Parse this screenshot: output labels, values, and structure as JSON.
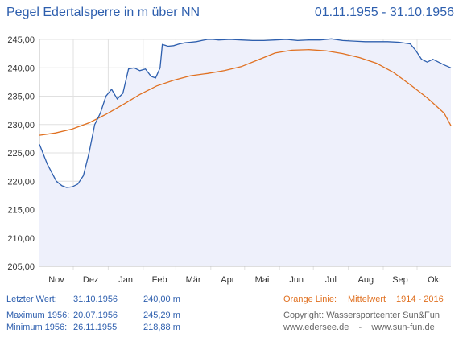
{
  "title": "Pegel Edertalsperre in m über NN",
  "date_range": "01.11.1955 - 31.10.1956",
  "info": {
    "last": {
      "label": "Letzter Wert:",
      "date": "31.10.1956",
      "value": "240,00 m"
    },
    "max": {
      "label": "Maximum 1956:",
      "date": "20.07.1956",
      "value": "245,29 m"
    },
    "min": {
      "label": "Minimum  1956:",
      "date": "26.11.1955",
      "value": "218,88 m"
    }
  },
  "legend": {
    "label": "Orange Linie:",
    "text": "Mittelwert",
    "years": "1914 - 2016"
  },
  "credits": {
    "copyright": "Copyright: Wassersportcenter Sun&Fun",
    "websites": "www.edersee.de    -    www.sun-fun.de"
  },
  "colors": {
    "level": "#2e5fae",
    "mean": "#e07020",
    "fill": "#eef0fb",
    "grid": "#e0e0e0",
    "accent": "#2e5fae"
  },
  "chart_data": {
    "type": "line",
    "ylim": [
      205,
      245
    ],
    "yticks": [
      "205,00",
      "210,00",
      "215,00",
      "220,00",
      "225,00",
      "230,00",
      "235,00",
      "240,00",
      "245,00"
    ],
    "months": [
      "Nov",
      "Dez",
      "Jan",
      "Feb",
      "Mär",
      "Apr",
      "Mai",
      "Jun",
      "Jul",
      "Aug",
      "Sep",
      "Okt"
    ],
    "grid": true,
    "series": [
      {
        "key": "level",
        "x": [
          1,
          8,
          16,
          21,
          25,
          30,
          35,
          40,
          45,
          50,
          55,
          60,
          65,
          70,
          75,
          80,
          85,
          90,
          95,
          100,
          104,
          108,
          110,
          112,
          115,
          120,
          125,
          130,
          135,
          140,
          145,
          150,
          155,
          160,
          170,
          180,
          190,
          200,
          210,
          220,
          230,
          240,
          250,
          260,
          270,
          280,
          290,
          300,
          310,
          320,
          330,
          335,
          340,
          345,
          350,
          355,
          360,
          366
        ],
        "values": [
          226.5,
          223,
          220,
          219.2,
          218.9,
          219,
          219.5,
          221,
          225,
          230,
          232,
          235,
          236.2,
          234.5,
          235.5,
          239.8,
          240,
          239.5,
          239.8,
          238.5,
          238.2,
          240,
          244.1,
          244,
          243.8,
          243.9,
          244.2,
          244.4,
          244.5,
          244.6,
          244.8,
          245,
          245,
          244.9,
          245,
          244.9,
          244.8,
          244.8,
          244.9,
          245,
          244.8,
          244.9,
          244.9,
          245.1,
          244.8,
          244.7,
          244.6,
          244.6,
          244.6,
          244.5,
          244.2,
          243,
          241.5,
          241,
          241.5,
          241,
          240.5,
          240
        ]
      },
      {
        "key": "mean",
        "x": [
          1,
          15,
          30,
          45,
          60,
          75,
          90,
          105,
          120,
          135,
          150,
          165,
          180,
          195,
          210,
          225,
          240,
          255,
          270,
          285,
          300,
          315,
          330,
          345,
          360,
          366
        ],
        "values": [
          228.1,
          228.5,
          229.2,
          230.3,
          231.8,
          233.5,
          235.3,
          236.8,
          237.8,
          238.6,
          239,
          239.5,
          240.2,
          241.4,
          242.6,
          243.1,
          243.2,
          243,
          242.5,
          241.8,
          240.8,
          239.2,
          237,
          234.7,
          232,
          229.8
        ]
      }
    ]
  }
}
